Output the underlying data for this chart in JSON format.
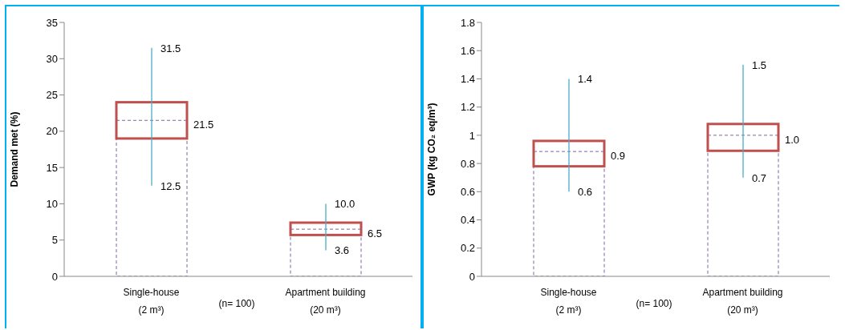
{
  "chart_data": [
    {
      "type": "box",
      "ylabel": "Demand met (%)",
      "categories": [
        "Single-house\n(2 m³)",
        "Apartment building\n(20 m³)"
      ],
      "boxes": [
        {
          "low": 12.5,
          "q1": 19,
          "median": 21.5,
          "q3": 24,
          "high": 31.5
        },
        {
          "low": 3.6,
          "q1": 5.7,
          "median": 6.5,
          "q3": 7.4,
          "high": 10.0
        }
      ],
      "value_labels": [
        [
          "31.5",
          "21.5",
          "12.5"
        ],
        [
          "10.0",
          "6.5",
          "3.6"
        ]
      ],
      "ylim": [
        0,
        35
      ],
      "yticks": [
        0,
        5,
        10,
        15,
        20,
        25,
        30,
        35
      ],
      "grid": false,
      "legend": false,
      "annotations": [
        "(n= 100)"
      ]
    },
    {
      "type": "box",
      "ylabel": "GWP (kg CO₂ eq/m³)",
      "categories": [
        "Single-house\n(2 m³)",
        "Apartment building\n(20 m³)"
      ],
      "boxes": [
        {
          "low": 0.6,
          "q1": 0.78,
          "median": 0.885,
          "q3": 0.96,
          "high": 1.4
        },
        {
          "low": 0.7,
          "q1": 0.89,
          "median": 1.0,
          "q3": 1.08,
          "high": 1.5
        }
      ],
      "value_labels": [
        [
          "1.4",
          "0.9",
          "0.6"
        ],
        [
          "1.5",
          "1.0",
          "0.7"
        ]
      ],
      "ylim": [
        0,
        1.8
      ],
      "yticks": [
        0,
        0.2,
        0.4,
        0.6,
        0.8,
        {
          "value": 1,
          "label": "1"
        },
        1.2,
        1.4,
        1.6,
        1.8
      ],
      "grid": false,
      "legend": false,
      "annotations": [
        "(n= 100)"
      ]
    }
  ]
}
